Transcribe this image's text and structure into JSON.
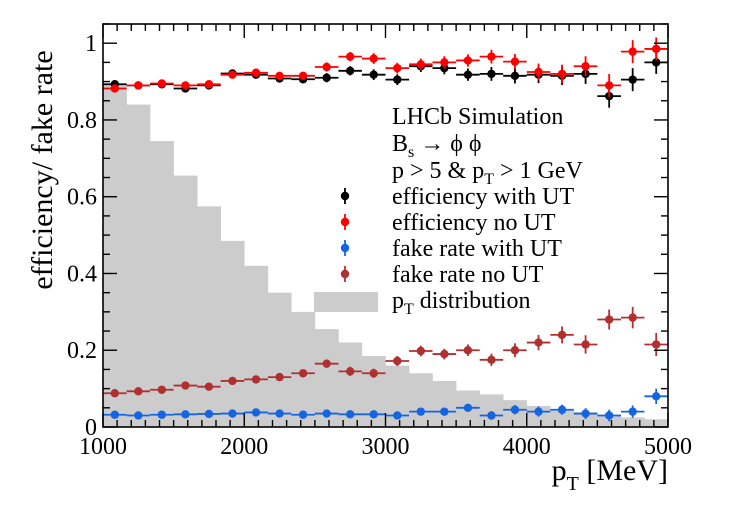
{
  "chart_data": {
    "type": "scatter",
    "title": "",
    "xlabel": "p_T [MeV]",
    "ylabel": "efficiency/ fake rate",
    "xlim": [
      1000,
      5000
    ],
    "ylim": [
      0,
      1.05
    ],
    "x_ticks": [
      1000,
      2000,
      3000,
      4000,
      5000
    ],
    "y_ticks": [
      0,
      0.2,
      0.4,
      0.6,
      0.8,
      1
    ],
    "x_tick_labels": [
      "1000",
      "2000",
      "3000",
      "4000",
      "5000"
    ],
    "y_tick_labels": [
      "0",
      "0.2",
      "0.4",
      "0.6",
      "0.8",
      "1"
    ],
    "bin_edges": [
      1000,
      1167,
      1333,
      1500,
      1667,
      1833,
      2000,
      2167,
      2333,
      2500,
      2667,
      2833,
      3000,
      3167,
      3333,
      3500,
      3667,
      3833,
      4000,
      4167,
      4333,
      4500,
      4667,
      4833,
      5000
    ],
    "annotations": {
      "experiment": "LHCb Simulation",
      "decay_base": "B",
      "decay_sub": "s",
      "decay_rest": " → ϕ ϕ",
      "cut_prefix": "p > 5 & p",
      "cut_sub": "T",
      "cut_suffix": " > 1 GeV"
    },
    "series": [
      {
        "name": "efficiency with UT",
        "label_main": "efficiency with UT",
        "label_sub": "",
        "label_suffix": "",
        "kind": "points",
        "color": "#000000",
        "values": [
          0.893,
          0.89,
          0.893,
          0.882,
          0.89,
          0.921,
          0.918,
          0.908,
          0.906,
          0.91,
          0.928,
          0.918,
          0.905,
          0.94,
          0.935,
          0.918,
          0.92,
          0.915,
          0.918,
          0.915,
          0.92,
          0.862,
          0.905,
          0.95
        ],
        "errors": [
          0.008,
          0.008,
          0.008,
          0.008,
          0.008,
          0.008,
          0.01,
          0.01,
          0.01,
          0.012,
          0.012,
          0.014,
          0.014,
          0.015,
          0.016,
          0.016,
          0.018,
          0.02,
          0.022,
          0.024,
          0.026,
          0.03,
          0.03,
          0.03
        ]
      },
      {
        "name": "efficiency no UT",
        "label_main": "efficiency no UT",
        "label_sub": "",
        "label_suffix": "",
        "kind": "points",
        "color": "#ff0000",
        "values": [
          0.882,
          0.89,
          0.895,
          0.89,
          0.893,
          0.918,
          0.923,
          0.915,
          0.915,
          0.938,
          0.965,
          0.96,
          0.935,
          0.945,
          0.95,
          0.955,
          0.965,
          0.952,
          0.925,
          0.92,
          0.94,
          0.89,
          0.978,
          0.985
        ],
        "errors": [
          0.008,
          0.008,
          0.008,
          0.008,
          0.008,
          0.008,
          0.01,
          0.01,
          0.01,
          0.012,
          0.012,
          0.014,
          0.014,
          0.015,
          0.016,
          0.016,
          0.018,
          0.02,
          0.022,
          0.024,
          0.026,
          0.03,
          0.03,
          0.03
        ]
      },
      {
        "name": "fake rate with UT",
        "label_main": "fake rate with UT",
        "label_sub": "",
        "label_suffix": "",
        "kind": "points",
        "color": "#1565e0",
        "values": [
          0.032,
          0.03,
          0.032,
          0.033,
          0.034,
          0.035,
          0.038,
          0.035,
          0.032,
          0.035,
          0.033,
          0.033,
          0.03,
          0.04,
          0.04,
          0.05,
          0.03,
          0.045,
          0.04,
          0.045,
          0.035,
          0.03,
          0.04,
          0.08
        ],
        "errors": [
          0.006,
          0.006,
          0.006,
          0.006,
          0.006,
          0.006,
          0.006,
          0.007,
          0.007,
          0.007,
          0.008,
          0.008,
          0.009,
          0.009,
          0.01,
          0.01,
          0.011,
          0.012,
          0.013,
          0.013,
          0.014,
          0.015,
          0.016,
          0.02
        ]
      },
      {
        "name": "fake rate no UT",
        "label_main": "fake rate no UT",
        "label_sub": "",
        "label_suffix": "",
        "kind": "points",
        "color": "#b03030",
        "values": [
          0.088,
          0.093,
          0.097,
          0.108,
          0.105,
          0.12,
          0.124,
          0.13,
          0.14,
          0.165,
          0.145,
          0.14,
          0.172,
          0.198,
          0.19,
          0.2,
          0.175,
          0.2,
          0.22,
          0.24,
          0.215,
          0.28,
          0.285,
          0.215
        ],
        "errors": [
          0.006,
          0.006,
          0.007,
          0.008,
          0.008,
          0.009,
          0.009,
          0.01,
          0.01,
          0.011,
          0.012,
          0.012,
          0.013,
          0.014,
          0.014,
          0.015,
          0.016,
          0.018,
          0.02,
          0.022,
          0.024,
          0.026,
          0.028,
          0.03
        ]
      },
      {
        "name": "p_T distribution",
        "label_main": "p",
        "label_sub": "T",
        "label_suffix": " distribution",
        "kind": "histogram",
        "color": "#cccccc",
        "values": [
          0.895,
          0.84,
          0.745,
          0.655,
          0.575,
          0.485,
          0.42,
          0.35,
          0.3,
          0.255,
          0.22,
          0.185,
          0.16,
          0.14,
          0.12,
          0.095,
          0.085,
          0.07,
          0.055,
          0.045,
          0.038,
          0.032,
          0.025,
          0.02
        ]
      }
    ]
  }
}
